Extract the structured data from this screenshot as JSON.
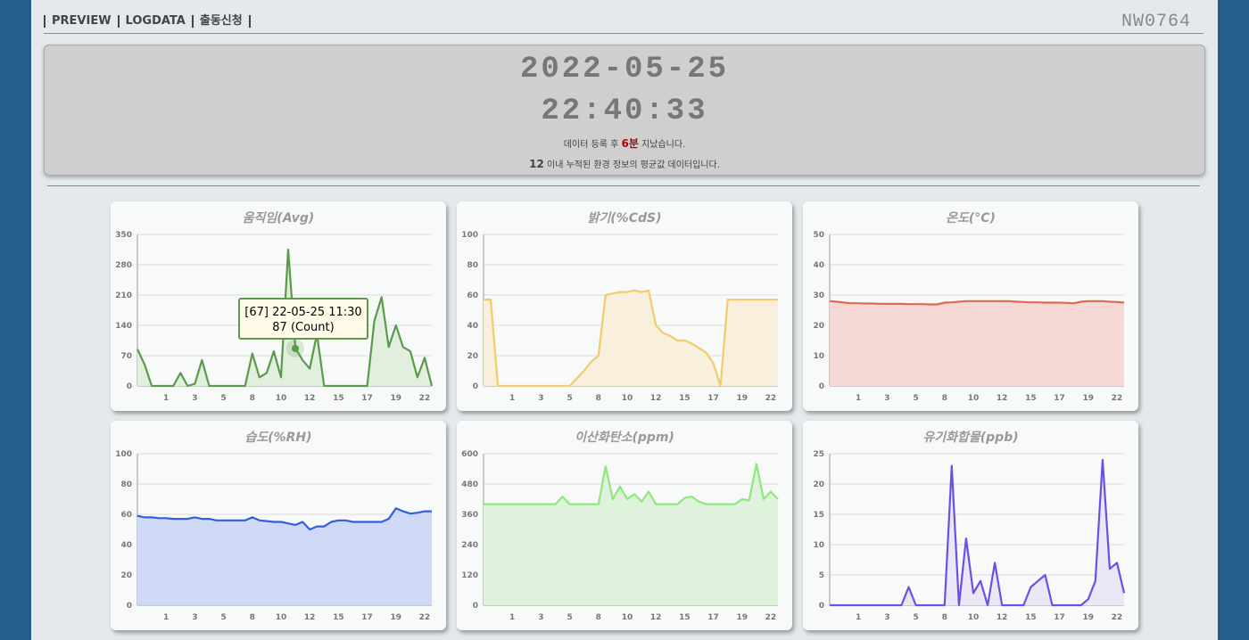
{
  "header": {
    "nav": [
      "PREVIEW",
      "LOGDATA",
      "출동신청"
    ],
    "logo": "NW0764"
  },
  "clock": {
    "date": "2022-05-25",
    "time": "22:40:33",
    "note1": [
      "데이터 등록 후",
      "6분",
      "지났습니다."
    ],
    "note2": [
      "12",
      "이내 누적된 환경 정보의 평균값 데이터입니다."
    ]
  },
  "chart_data": [
    {
      "type": "line",
      "title": "움직임(Avg)",
      "color": "#5a9a4a",
      "fill_color": "#e2efdf",
      "grid": true,
      "ylim": [
        0,
        350
      ],
      "yticks": [
        0,
        70,
        140,
        210,
        280,
        350
      ],
      "categories": [
        null,
        null,
        null,
        null,
        "1",
        null,
        null,
        null,
        "3",
        null,
        null,
        null,
        "5",
        null,
        null,
        null,
        "8",
        null,
        null,
        null,
        "10",
        null,
        null,
        null,
        "12",
        null,
        null,
        null,
        "15",
        null,
        null,
        null,
        "17",
        null,
        null,
        null,
        "19",
        null,
        null,
        null,
        "22",
        null
      ],
      "values": [
        85,
        50,
        0,
        0,
        0,
        0,
        30,
        0,
        5,
        60,
        0,
        0,
        0,
        0,
        0,
        0,
        75,
        20,
        30,
        80,
        20,
        315,
        87,
        60,
        40,
        120,
        0,
        0,
        0,
        0,
        0,
        0,
        0,
        150,
        205,
        90,
        140,
        90,
        80,
        20,
        65,
        0
      ],
      "tooltip": {
        "title": "[67] 22-05-25 11:30",
        "text": "87 (Count)"
      }
    },
    {
      "type": "line",
      "title": "밝기(%CdS)",
      "color": "#f0cd6a",
      "fill_color": "#f8efdc",
      "grid": true,
      "ylim": [
        0,
        100
      ],
      "yticks": [
        0,
        20,
        40,
        60,
        80,
        100
      ],
      "categories": [
        null,
        null,
        null,
        null,
        "1",
        null,
        null,
        null,
        "3",
        null,
        null,
        null,
        "5",
        null,
        null,
        null,
        "8",
        null,
        null,
        null,
        "10",
        null,
        null,
        null,
        "12",
        null,
        null,
        null,
        "15",
        null,
        null,
        null,
        "17",
        null,
        null,
        null,
        "19",
        null,
        null,
        null,
        "22",
        null
      ],
      "values": [
        57,
        57,
        0,
        0,
        0,
        0,
        0,
        0,
        0,
        0,
        0,
        0,
        0,
        5,
        10,
        16,
        20,
        60,
        61,
        62,
        62,
        63,
        62,
        63,
        40,
        35,
        33,
        30,
        30,
        28,
        25,
        22,
        15,
        0,
        57,
        57,
        57,
        57,
        57,
        57,
        57,
        57
      ]
    },
    {
      "type": "line",
      "title": "온도(°C)",
      "color": "#e06a50",
      "fill_color": "#f6d9d7",
      "grid": true,
      "ylim": [
        0,
        50
      ],
      "yticks": [
        0,
        10,
        20,
        30,
        40,
        50
      ],
      "categories": [
        null,
        null,
        null,
        null,
        "1",
        null,
        null,
        null,
        "3",
        null,
        null,
        null,
        "5",
        null,
        null,
        null,
        "8",
        null,
        null,
        null,
        "10",
        null,
        null,
        null,
        "12",
        null,
        null,
        null,
        "15",
        null,
        null,
        null,
        "17",
        null,
        null,
        null,
        "19",
        null,
        null,
        null,
        "22",
        null
      ],
      "values": [
        28,
        27.8,
        27.5,
        27.3,
        27.3,
        27.2,
        27.2,
        27.1,
        27.1,
        27.1,
        27.1,
        27,
        27,
        27,
        26.9,
        26.9,
        27.5,
        27.6,
        27.8,
        28,
        28,
        28,
        28,
        28,
        28,
        28,
        27.8,
        27.7,
        27.6,
        27.6,
        27.5,
        27.5,
        27.5,
        27.4,
        27.3,
        27.8,
        28,
        28,
        28,
        27.8,
        27.7,
        27.5
      ]
    },
    {
      "type": "line",
      "title": "습도(%RH)",
      "color": "#2f5fe0",
      "fill_color": "#cfd9f6",
      "grid": true,
      "ylim": [
        0,
        100
      ],
      "yticks": [
        0,
        20,
        40,
        60,
        80,
        100
      ],
      "categories": [
        null,
        null,
        null,
        null,
        "1",
        null,
        null,
        null,
        "3",
        null,
        null,
        null,
        "5",
        null,
        null,
        null,
        "8",
        null,
        null,
        null,
        "10",
        null,
        null,
        null,
        "12",
        null,
        null,
        null,
        "15",
        null,
        null,
        null,
        "17",
        null,
        null,
        null,
        "19",
        null,
        null,
        null,
        "22",
        null
      ],
      "values": [
        59,
        58,
        58,
        57.5,
        57.5,
        57,
        57,
        57,
        58,
        57,
        57,
        56,
        56,
        56,
        56,
        56,
        58,
        56,
        55.5,
        55,
        55,
        54,
        53,
        55,
        50,
        52,
        52,
        55,
        56,
        56,
        55,
        55,
        55,
        55,
        55,
        57,
        64,
        62,
        60.5,
        61,
        62,
        62
      ]
    },
    {
      "type": "line",
      "title": "이산화탄소(ppm)",
      "color": "#8fe87f",
      "fill_color": "#dff2dc",
      "grid": true,
      "ylim": [
        0,
        600
      ],
      "yticks": [
        0,
        120,
        240,
        360,
        480,
        600
      ],
      "categories": [
        null,
        null,
        null,
        null,
        "1",
        null,
        null,
        null,
        "3",
        null,
        null,
        null,
        "5",
        null,
        null,
        null,
        "8",
        null,
        null,
        null,
        "10",
        null,
        null,
        null,
        "12",
        null,
        null,
        null,
        "15",
        null,
        null,
        null,
        "17",
        null,
        null,
        null,
        "19",
        null,
        null,
        null,
        "22",
        null
      ],
      "values": [
        400,
        400,
        400,
        400,
        400,
        400,
        400,
        400,
        400,
        400,
        400,
        430,
        400,
        400,
        400,
        400,
        400,
        550,
        420,
        470,
        420,
        440,
        410,
        450,
        400,
        400,
        400,
        400,
        425,
        430,
        410,
        400,
        400,
        400,
        400,
        400,
        420,
        415,
        560,
        420,
        450,
        420
      ]
    },
    {
      "type": "line",
      "title": "유기화합물(ppb)",
      "color": "#6d4fe6",
      "fill_color": "#ebe7f7",
      "grid": true,
      "ylim": [
        0,
        25
      ],
      "yticks": [
        0,
        5,
        10,
        15,
        20,
        25
      ],
      "categories": [
        null,
        null,
        null,
        null,
        "1",
        null,
        null,
        null,
        "3",
        null,
        null,
        null,
        "5",
        null,
        null,
        null,
        "8",
        null,
        null,
        null,
        "10",
        null,
        null,
        null,
        "12",
        null,
        null,
        null,
        "15",
        null,
        null,
        null,
        "17",
        null,
        null,
        null,
        "19",
        null,
        null,
        null,
        "22",
        null
      ],
      "values": [
        0,
        0,
        0,
        0,
        0,
        0,
        0,
        0,
        0,
        0,
        0,
        3,
        0,
        0,
        0,
        0,
        0,
        23,
        0,
        11,
        2,
        4,
        0,
        7,
        0,
        0,
        0,
        0,
        3,
        4,
        5,
        0,
        0,
        0,
        0,
        0,
        1,
        4,
        24,
        6,
        7,
        2
      ]
    }
  ]
}
